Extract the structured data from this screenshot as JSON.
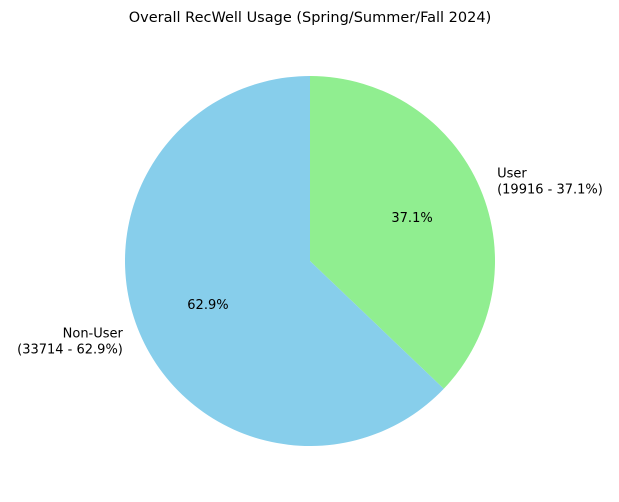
{
  "chart_data": {
    "type": "pie",
    "title": "Overall RecWell Usage (Spring/Summer/Fall 2024)",
    "categories": [
      "User",
      "Non-User"
    ],
    "values": [
      19916,
      33714
    ],
    "percentages": [
      37.1,
      62.9
    ],
    "pct_labels": [
      "37.1%",
      "62.9%"
    ],
    "slice_labels": [
      [
        "User",
        "(19916 - 37.1%)"
      ],
      [
        "Non-User",
        "(33714 - 62.9%)"
      ]
    ],
    "colors": [
      "#90ee90",
      "#87ceeb"
    ],
    "start_angle": 90,
    "direction": "clockwise",
    "legend": "none"
  }
}
